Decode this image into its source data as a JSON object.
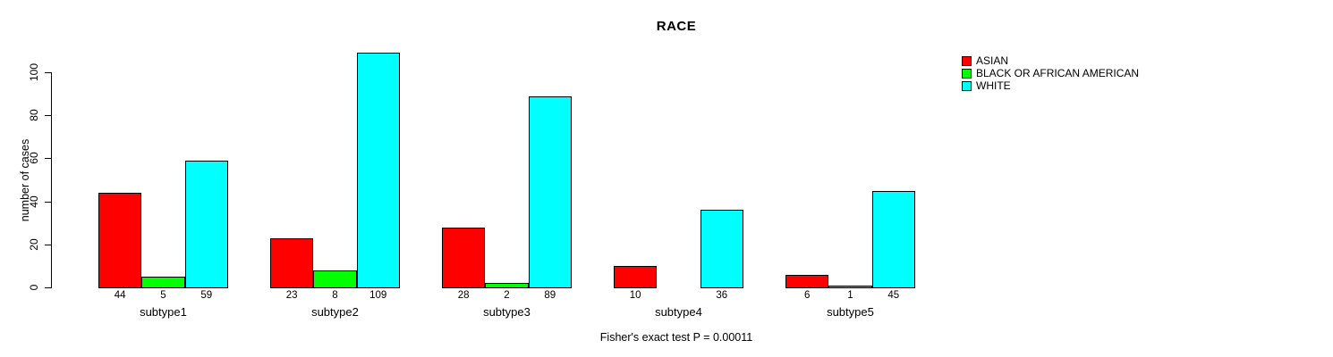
{
  "chart_data": {
    "type": "bar",
    "title": "RACE",
    "ylabel": "number of cases",
    "footer": "Fisher's exact test P = 0.00011",
    "categories": [
      "subtype1",
      "subtype2",
      "subtype3",
      "subtype4",
      "subtype5"
    ],
    "series": [
      {
        "name": "ASIAN",
        "color": "#ff0000",
        "values": [
          44,
          23,
          28,
          10,
          6
        ]
      },
      {
        "name": "BLACK OR AFRICAN AMERICAN",
        "color": "#00ff00",
        "values": [
          5,
          8,
          2,
          0,
          1
        ]
      },
      {
        "name": "WHITE",
        "color": "#00ffff",
        "values": [
          59,
          109,
          89,
          36,
          45
        ]
      }
    ],
    "yticks": [
      0,
      20,
      40,
      60,
      80,
      100
    ],
    "ylim": [
      0,
      110
    ],
    "grid": false,
    "legend_position": "top-right",
    "bar_border_color": "#000000",
    "value_labels_shown": true,
    "zero_values_unlabeled": true
  }
}
